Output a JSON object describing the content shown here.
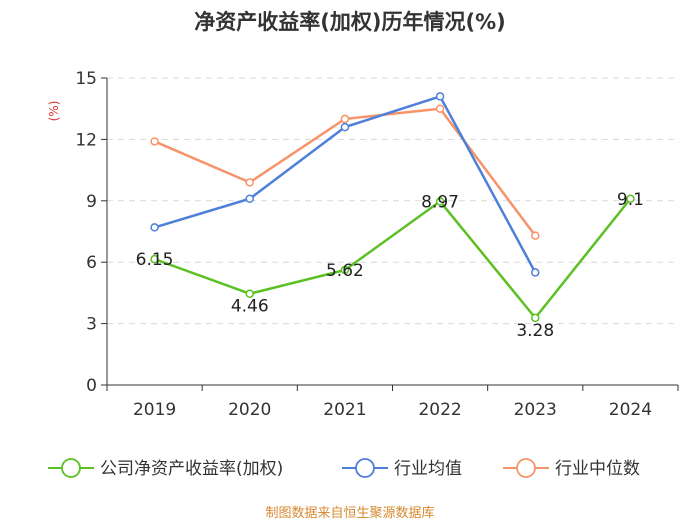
{
  "chart_data": {
    "type": "line",
    "title": "净资产收益率(加权)历年情况(%)",
    "ylabel": "(%)",
    "categories": [
      "2019",
      "2020",
      "2021",
      "2022",
      "2023",
      "2024"
    ],
    "yticks": [
      "0",
      "3",
      "6",
      "9",
      "12",
      "15"
    ],
    "ylim": [
      0,
      15
    ],
    "grid": true,
    "legend_position": "bottom",
    "series": [
      {
        "name": "公司净资产收益率(加权)",
        "color": "#5bc021",
        "values": [
          6.15,
          4.46,
          5.62,
          8.97,
          3.28,
          9.1
        ],
        "labels": [
          "6.15",
          "4.46",
          "5.62",
          "8.97",
          "3.28",
          "9.1"
        ]
      },
      {
        "name": "行业均值",
        "color": "#4e7fd9",
        "values": [
          7.7,
          9.1,
          12.6,
          14.1,
          5.5,
          null
        ]
      },
      {
        "name": "行业中位数",
        "color": "#f7936a",
        "values": [
          11.9,
          9.9,
          13.0,
          13.5,
          7.3,
          null
        ]
      }
    ],
    "source": "制图数据来自恒生聚源数据库"
  }
}
